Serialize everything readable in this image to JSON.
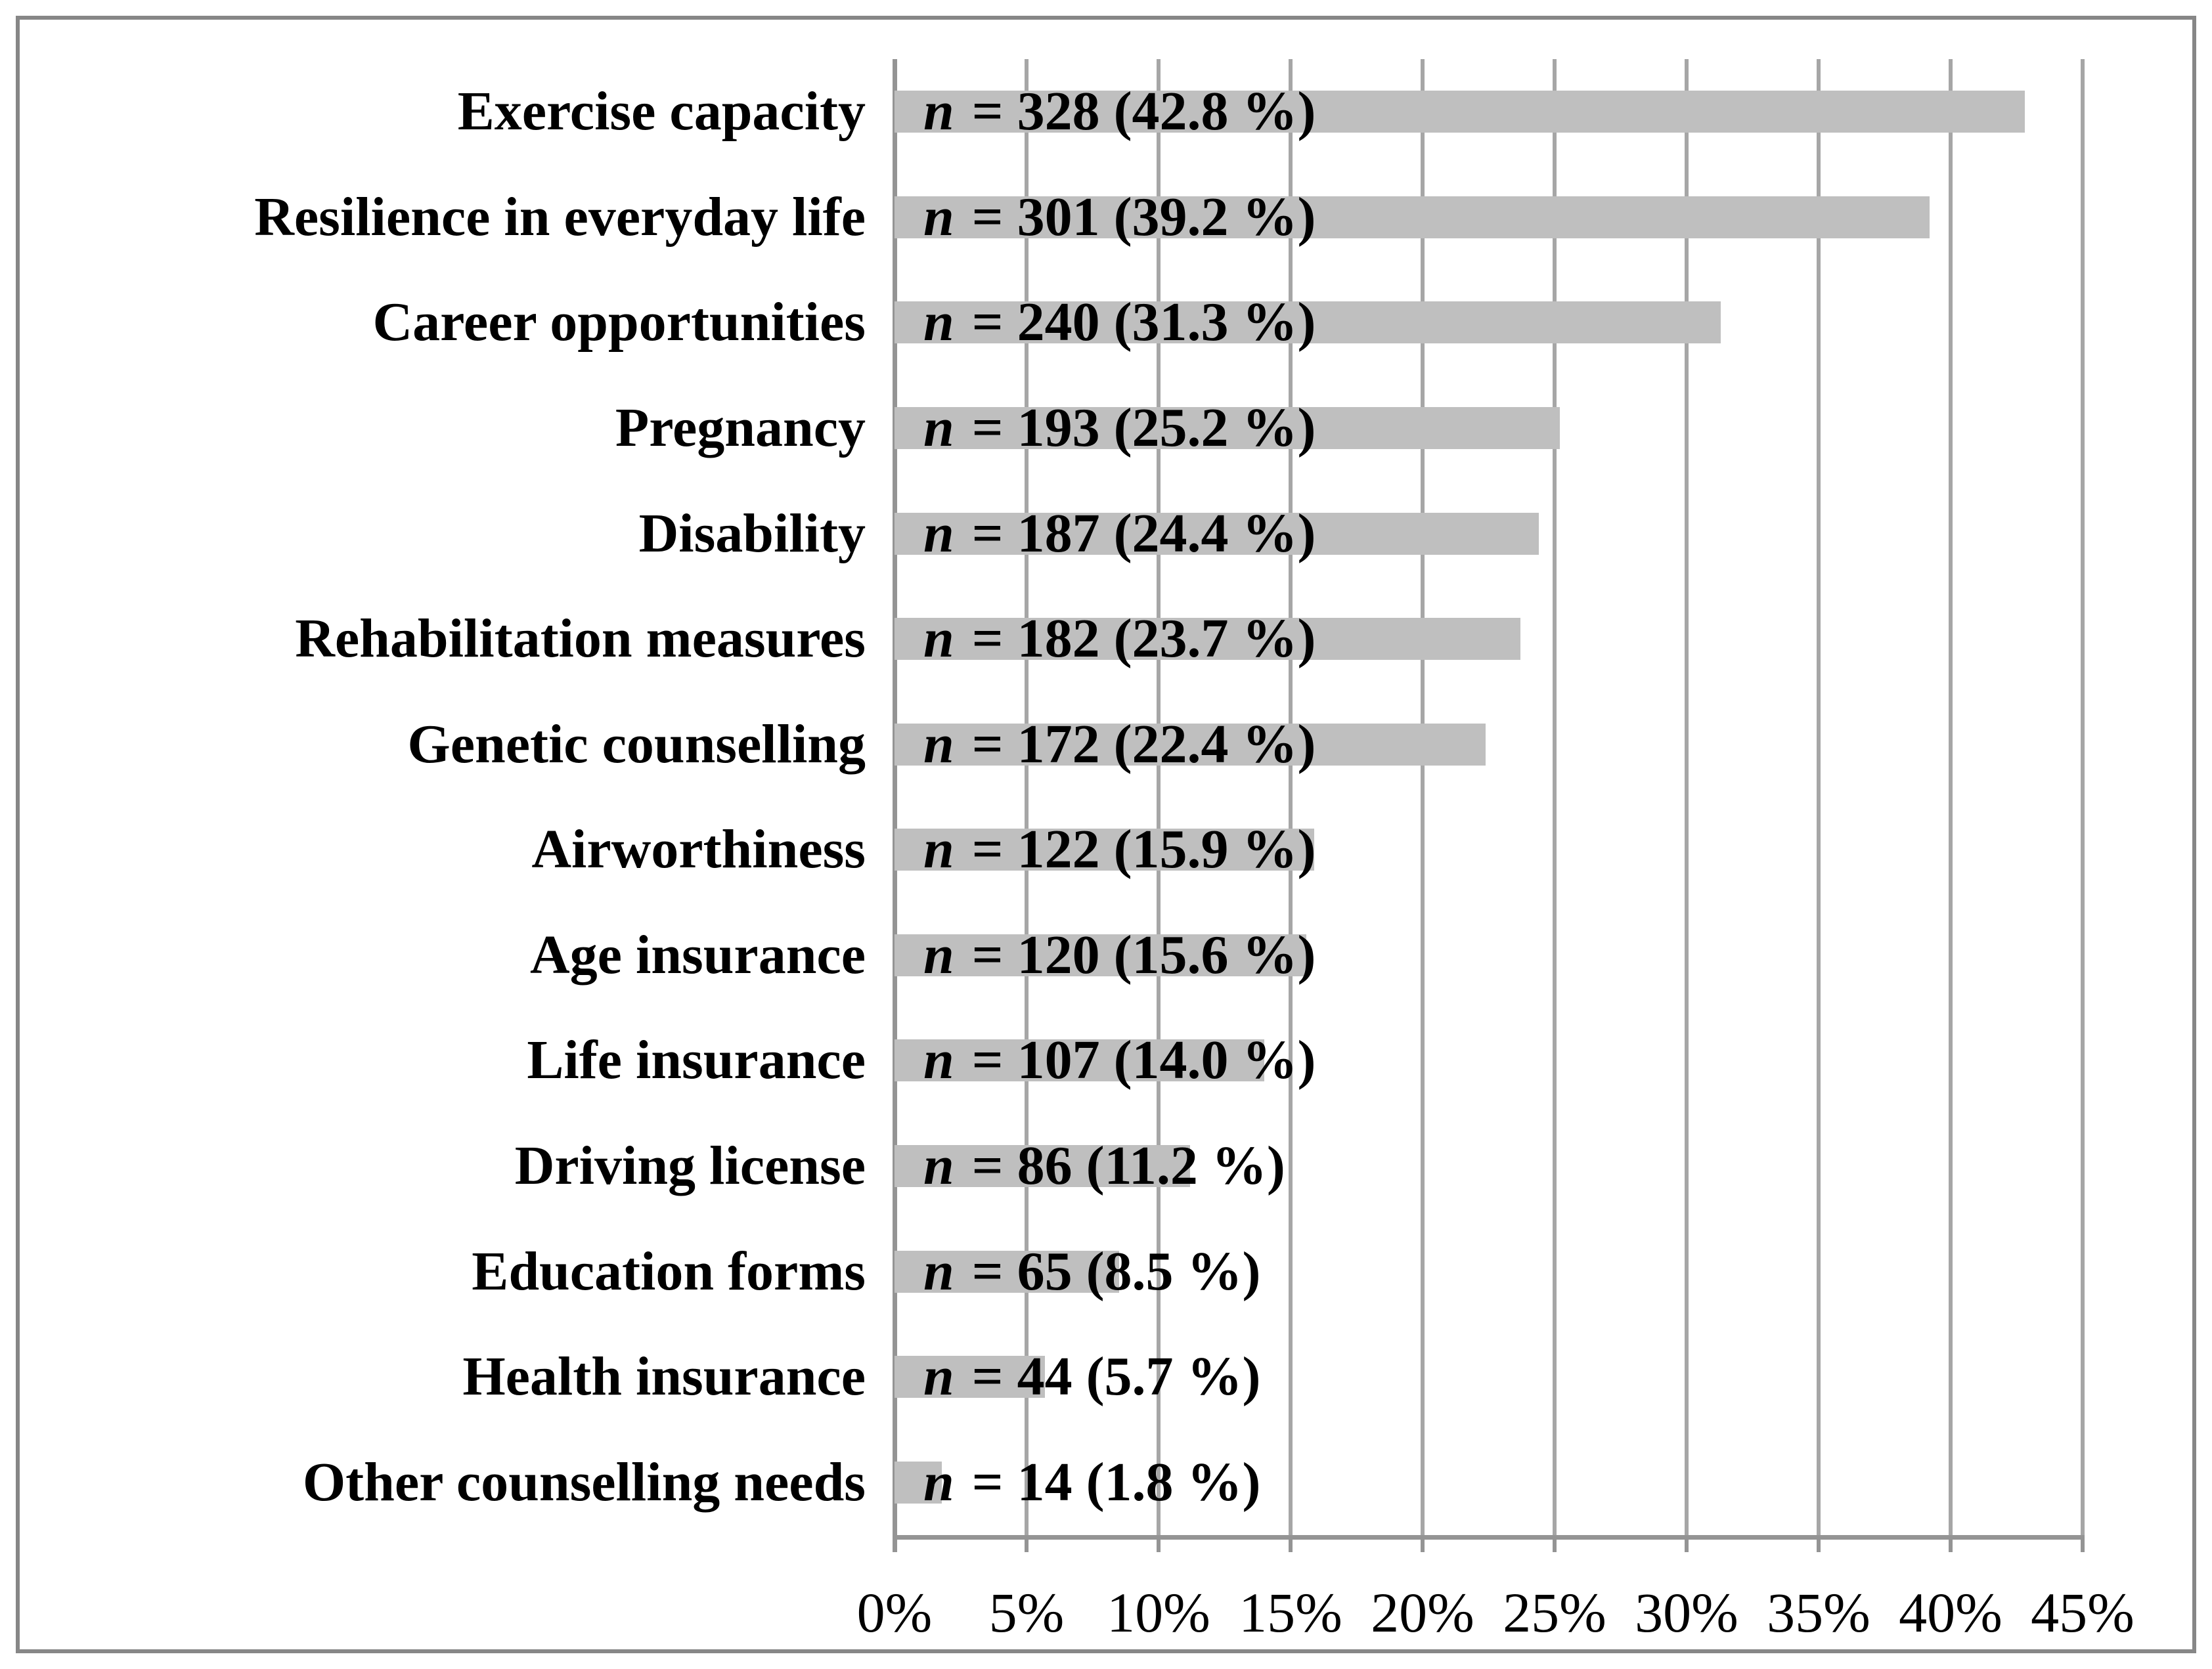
{
  "figure": {
    "background_color": "#FFFFFF",
    "border_color": "#878787",
    "bar_fill_color": "#BFBFBF",
    "gridline_color": "#A6A6A6",
    "axis_line_color": "#949494",
    "text_color": "#000000"
  },
  "chart_data": {
    "type": "bar",
    "orientation": "horizontal",
    "title": "",
    "xlabel": "",
    "ylabel": "",
    "categories": [
      "Exercise capacity",
      "Resilience in everyday life",
      "Career opportunities",
      "Pregnancy",
      "Disability",
      "Rehabilitation measures",
      "Genetic counselling",
      "Airworthiness",
      "Age insurance",
      "Life insurance",
      "Driving license",
      "Education forms",
      "Health insurance",
      "Other counselling needs"
    ],
    "counts": [
      328,
      301,
      240,
      193,
      187,
      182,
      172,
      122,
      120,
      107,
      86,
      65,
      44,
      14
    ],
    "values_pct": [
      42.8,
      39.2,
      31.3,
      25.2,
      24.4,
      23.7,
      22.4,
      15.9,
      15.6,
      14.0,
      11.2,
      8.5,
      5.7,
      1.8
    ],
    "bar_labels": [
      "n = 328 (42.8 %)",
      "n = 301 (39.2 %)",
      "n = 240 (31.3 %)",
      "n = 193 (25.2 %)",
      "n = 187 (24.4 %)",
      "n = 182 (23.7 %)",
      "n = 172 (22.4 %)",
      "n = 122 (15.9 %)",
      "n = 120 (15.6 %)",
      "n = 107 (14.0 %)",
      "n = 86 (11.2 %)",
      "n = 65 (8.5 %)",
      "n = 44 (5.7 %)",
      "n = 14 (1.8 %)"
    ],
    "x_tick_labels": [
      "0%",
      "5%",
      "10%",
      "15%",
      "20%",
      "25%",
      "30%",
      "35%",
      "40%",
      "45%"
    ],
    "xlim": [
      0,
      45
    ],
    "x_tick_step_pct": 5,
    "grid": true,
    "legend": "none"
  }
}
